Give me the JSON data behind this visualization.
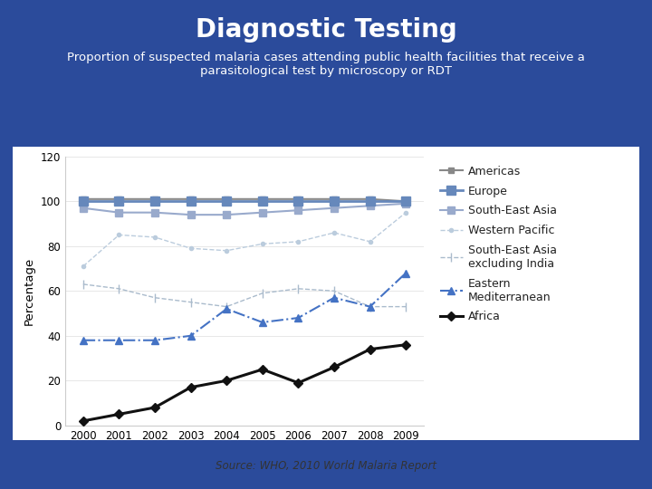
{
  "title": "Diagnostic Testing",
  "subtitle": "Proportion of suspected malaria cases attending public health facilities that receive a\nparasitological test by microscopy or RDT",
  "ylabel": "Percentage",
  "years": [
    2000,
    2001,
    2002,
    2003,
    2004,
    2005,
    2006,
    2007,
    2008,
    2009
  ],
  "ylim": [
    0,
    120
  ],
  "yticks": [
    0,
    20,
    40,
    60,
    80,
    100,
    120
  ],
  "background_color": "#2B4B9B",
  "plot_bg": "#FFFFFF",
  "title_color": "#FFFFFF",
  "subtitle_color": "#FFFFFF",
  "series": [
    {
      "name": "Americas",
      "values": [
        101,
        101,
        101,
        101,
        101,
        101,
        101,
        101,
        101,
        100
      ],
      "color": "#888888",
      "linestyle": "-",
      "marker": "s",
      "markersize": 5,
      "linewidth": 1.5,
      "zorder": 3
    },
    {
      "name": "Europe",
      "values": [
        100,
        100,
        100,
        100,
        100,
        100,
        100,
        100,
        100,
        100
      ],
      "color": "#6688BB",
      "linestyle": "-",
      "marker": "s",
      "markersize": 7,
      "linewidth": 2.0,
      "zorder": 4
    },
    {
      "name": "South-East Asia",
      "values": [
        97,
        95,
        95,
        94,
        94,
        95,
        96,
        97,
        98,
        99
      ],
      "color": "#99AACC",
      "linestyle": "-",
      "marker": "s",
      "markersize": 6,
      "linewidth": 1.5,
      "zorder": 3
    },
    {
      "name": "Western Pacific",
      "values": [
        71,
        85,
        84,
        79,
        78,
        81,
        82,
        86,
        82,
        95
      ],
      "color": "#BBCCDD",
      "linestyle": "--",
      "marker": "o",
      "markersize": 3,
      "linewidth": 1.0,
      "zorder": 2
    },
    {
      "name": "South-East Asia\nexcluding India",
      "values": [
        63,
        61,
        57,
        55,
        53,
        59,
        61,
        60,
        53,
        53
      ],
      "color": "#AABBCC",
      "linestyle": "--",
      "marker": "|",
      "markersize": 7,
      "linewidth": 1.0,
      "zorder": 2
    },
    {
      "name": "Eastern\nMediterranean",
      "values": [
        38,
        38,
        38,
        40,
        52,
        46,
        48,
        57,
        53,
        68
      ],
      "color": "#4472C4",
      "linestyle": "-.",
      "marker": "^",
      "markersize": 6,
      "linewidth": 1.5,
      "zorder": 3
    },
    {
      "name": "Africa",
      "values": [
        2,
        5,
        8,
        17,
        20,
        25,
        19,
        26,
        34,
        36
      ],
      "color": "#111111",
      "linestyle": "-",
      "marker": "D",
      "markersize": 5,
      "linewidth": 2.2,
      "zorder": 5
    }
  ],
  "source_text": "Source: WHO, 2010 World Malaria Report",
  "frame_color": "#FFFFFF",
  "frame_linewidth": 8
}
